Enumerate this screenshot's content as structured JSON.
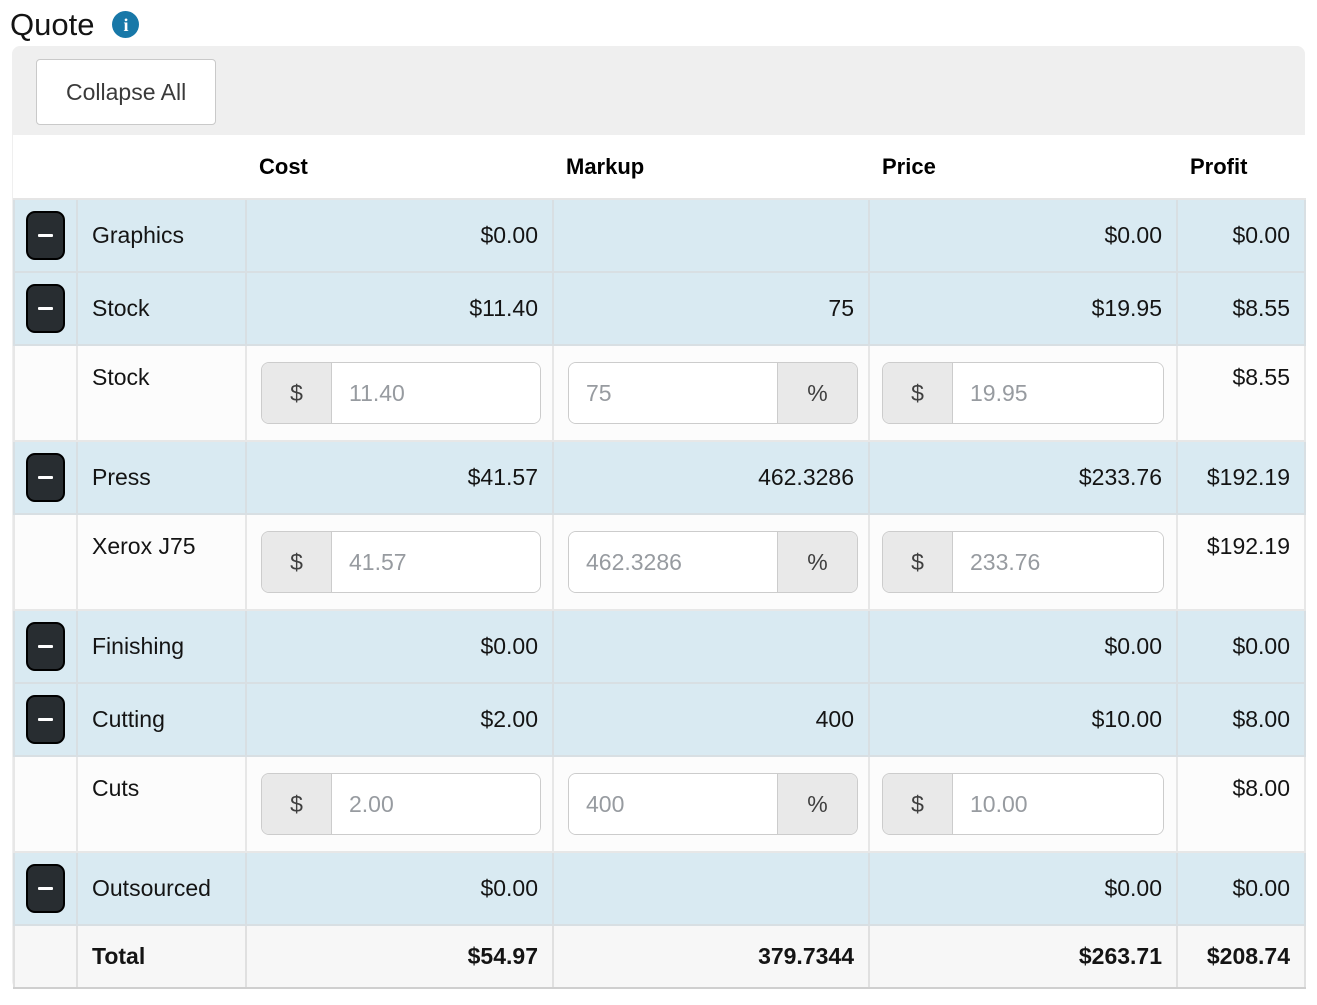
{
  "page": {
    "title": "Quote"
  },
  "icons": {
    "info": "i"
  },
  "toolbar": {
    "collapse_all": "Collapse All"
  },
  "table": {
    "headers": {
      "cost": "Cost",
      "markup": "Markup",
      "price": "Price",
      "profit": "Profit"
    },
    "symbols": {
      "currency": "$",
      "percent": "%"
    },
    "rows": [
      {
        "type": "category",
        "label": "Graphics",
        "cost": "$0.00",
        "markup": "",
        "price": "$0.00",
        "profit": "$0.00"
      },
      {
        "type": "category",
        "label": "Stock",
        "cost": "$11.40",
        "markup": "75",
        "price": "$19.95",
        "profit": "$8.55"
      },
      {
        "type": "detail",
        "label": "Stock",
        "cost_input": "11.40",
        "markup_input": "75",
        "price_input": "19.95",
        "profit": "$8.55"
      },
      {
        "type": "category",
        "label": "Press",
        "cost": "$41.57",
        "markup": "462.3286",
        "price": "$233.76",
        "profit": "$192.19"
      },
      {
        "type": "detail",
        "label": "Xerox J75",
        "cost_input": "41.57",
        "markup_input": "462.3286",
        "price_input": "233.76",
        "profit": "$192.19"
      },
      {
        "type": "category",
        "label": "Finishing",
        "cost": "$0.00",
        "markup": "",
        "price": "$0.00",
        "profit": "$0.00"
      },
      {
        "type": "category",
        "label": "Cutting",
        "cost": "$2.00",
        "markup": "400",
        "price": "$10.00",
        "profit": "$8.00"
      },
      {
        "type": "detail",
        "label": "Cuts",
        "cost_input": "2.00",
        "markup_input": "400",
        "price_input": "10.00",
        "profit": "$8.00"
      },
      {
        "type": "category",
        "label": "Outsourced",
        "cost": "$0.00",
        "markup": "",
        "price": "$0.00",
        "profit": "$0.00"
      },
      {
        "type": "total",
        "label": "Total",
        "cost": "$54.97",
        "markup": "379.7344",
        "price": "$263.71",
        "profit": "$208.74"
      }
    ]
  },
  "colors": {
    "info_icon": "#1878a8",
    "category_row_bg": "#d9eaf2",
    "total_row_bg": "#f7f7f7",
    "panel_bg": "#efefef",
    "collapse_button_bg": "#282d31",
    "input_text": "#979ba0"
  }
}
